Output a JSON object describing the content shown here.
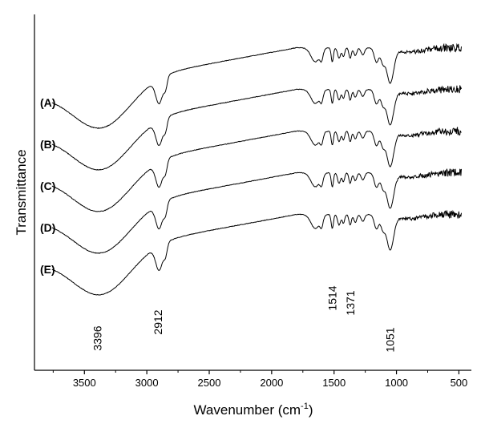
{
  "chart_data": {
    "type": "line",
    "title": "",
    "xlabel": "Wavenumber (cm",
    "xlabel_sup": "-1",
    "xlabel_close": ")",
    "ylabel": "Transmittance",
    "xlim": [
      3900,
      400
    ],
    "x_reversed": true,
    "x_ticks": [
      3500,
      3000,
      2500,
      2000,
      1500,
      1000,
      500
    ],
    "y_ticks_shown": false,
    "grid": false,
    "series": [
      {
        "name": "(A)",
        "offset": 0.5,
        "color": "#000000"
      },
      {
        "name": "(B)",
        "offset": 0.4,
        "color": "#000000"
      },
      {
        "name": "(C)",
        "offset": 0.3,
        "color": "#000000"
      },
      {
        "name": "(D)",
        "offset": 0.2,
        "color": "#000000"
      },
      {
        "name": "(E)",
        "offset": 0.1,
        "color": "#000000"
      }
    ],
    "annotations": [
      {
        "text": "3396",
        "x": 3396
      },
      {
        "text": "2912",
        "x": 2912
      },
      {
        "text": "1514",
        "x": 1514
      },
      {
        "text": "1371",
        "x": 1371
      },
      {
        "text": "1051",
        "x": 1051
      }
    ]
  }
}
